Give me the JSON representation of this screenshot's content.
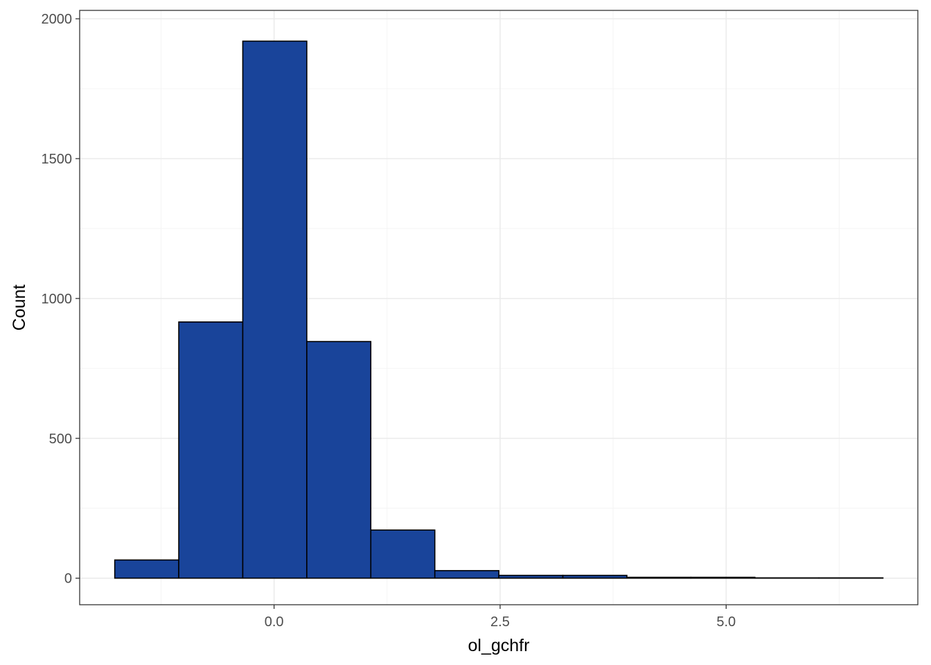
{
  "chart_data": {
    "type": "bar",
    "subtype": "histogram",
    "title": "",
    "xlabel": "ol_gchfr",
    "ylabel": "Count",
    "bins": [
      {
        "x0": -1.762,
        "x1": -1.054,
        "count": 65
      },
      {
        "x0": -1.054,
        "x1": -0.346,
        "count": 916
      },
      {
        "x0": -0.346,
        "x1": 0.362,
        "count": 1920
      },
      {
        "x0": 0.362,
        "x1": 1.07,
        "count": 846
      },
      {
        "x0": 1.07,
        "x1": 1.778,
        "count": 172
      },
      {
        "x0": 1.778,
        "x1": 2.486,
        "count": 27
      },
      {
        "x0": 2.486,
        "x1": 3.194,
        "count": 10
      },
      {
        "x0": 3.194,
        "x1": 3.902,
        "count": 10
      },
      {
        "x0": 3.902,
        "x1": 4.61,
        "count": 3
      },
      {
        "x0": 4.61,
        "x1": 5.318,
        "count": 3
      },
      {
        "x0": 5.318,
        "x1": 6.026,
        "count": 1
      },
      {
        "x0": 6.026,
        "x1": 6.734,
        "count": 1
      }
    ],
    "xlim": [
      -2.15,
      7.12
    ],
    "ylim": [
      -95,
      2030
    ],
    "x_ticks": [
      0.0,
      2.5,
      5.0
    ],
    "x_tick_labels": [
      "0.0",
      "2.5",
      "5.0"
    ],
    "x_minor_ticks": [
      -1.25,
      1.25,
      3.75,
      6.25
    ],
    "y_ticks": [
      0,
      500,
      1000,
      1500,
      2000
    ],
    "y_tick_labels": [
      "0",
      "500",
      "1000",
      "1500",
      "2000"
    ],
    "y_minor_ticks": [
      250,
      750,
      1250,
      1750
    ],
    "grid": true,
    "legend": "none",
    "colors": {
      "bar_fill": "#19449A",
      "bar_stroke": "#000000",
      "grid_major": "#EBEBEB",
      "grid_minor": "#F4F4F4",
      "panel_border": "#333333",
      "tick_text": "#4D4D4D"
    }
  }
}
